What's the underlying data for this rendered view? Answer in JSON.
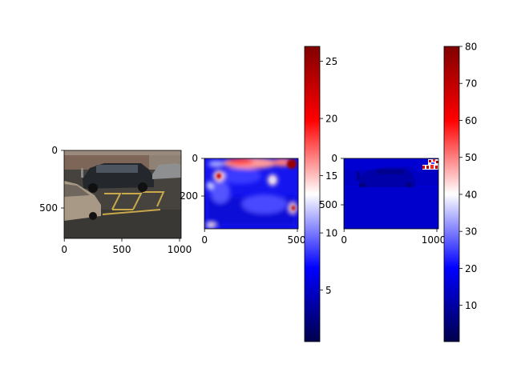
{
  "chart_data": [
    {
      "type": "image",
      "title": "",
      "content": "photo of a parking lot with a dark SUV, a tan sedan and yellow-painted parking bay lines",
      "x_ticks": [
        "0",
        "500",
        "1000"
      ],
      "y_ticks": [
        "0",
        "500"
      ],
      "xlim": [
        0,
        1000
      ],
      "ylim": [
        750,
        0
      ]
    },
    {
      "type": "heatmap",
      "title": "",
      "colormap": "seismic",
      "x_ticks": [
        "0",
        "500"
      ],
      "y_ticks": [
        "0",
        "200"
      ],
      "xlim": [
        0,
        500
      ],
      "ylim": [
        375,
        0
      ],
      "colorbar": {
        "ticks": [
          "5",
          "10",
          "15",
          "20",
          "25"
        ],
        "range": [
          0.5,
          26.3
        ]
      }
    },
    {
      "type": "heatmap",
      "title": "",
      "colormap": "seismic",
      "x_ticks": [
        "0",
        "1000"
      ],
      "y_ticks": [
        "0",
        "500"
      ],
      "xlim": [
        0,
        1000
      ],
      "ylim": [
        750,
        0
      ],
      "colorbar": {
        "ticks": [
          "10",
          "20",
          "30",
          "40",
          "50",
          "60",
          "70",
          "80"
        ],
        "range": [
          0.2,
          80
        ]
      }
    }
  ]
}
